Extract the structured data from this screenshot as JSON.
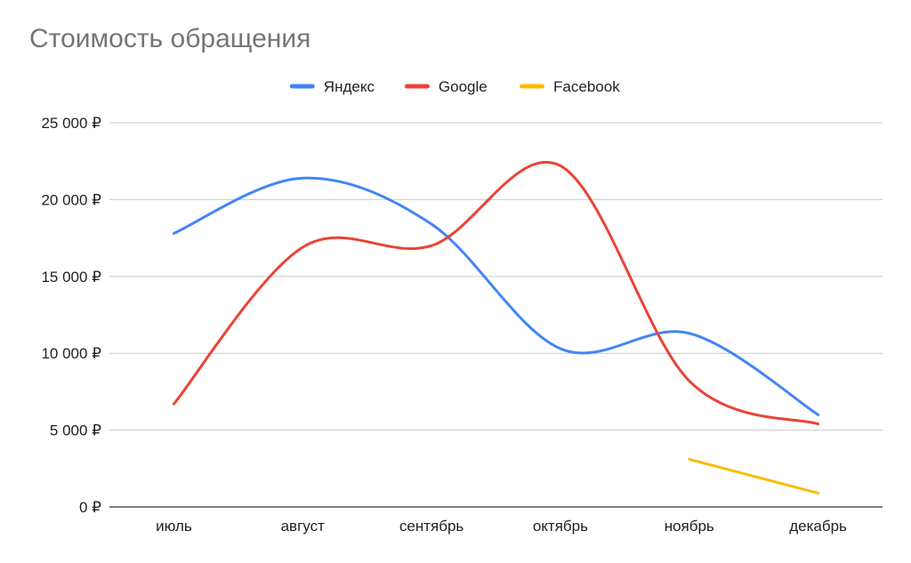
{
  "chart_data": {
    "type": "line",
    "title": "Стоимость обращения",
    "categories": [
      "июль",
      "август",
      "сентябрь",
      "октябрь",
      "ноябрь",
      "декабрь"
    ],
    "y_ticks": [
      "0 ₽",
      "5 000 ₽",
      "10 000 ₽",
      "15 000 ₽",
      "20 000 ₽",
      "25 000 ₽"
    ],
    "ylim": [
      0,
      25000
    ],
    "grid": true,
    "legend_position": "top",
    "smooth": true,
    "series": [
      {
        "name": "Яндекс",
        "color": "#4285f4",
        "values": [
          17800,
          21400,
          18400,
          10300,
          11300,
          6000
        ]
      },
      {
        "name": "Google",
        "color": "#ea4335",
        "values": [
          6700,
          16900,
          17000,
          22200,
          8200,
          5400
        ]
      },
      {
        "name": "Facebook",
        "color": "#fbbc04",
        "values": [
          null,
          null,
          null,
          null,
          3100,
          900
        ]
      }
    ]
  }
}
